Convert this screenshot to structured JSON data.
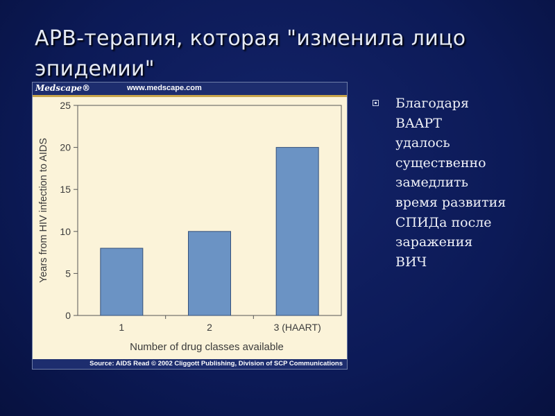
{
  "slide": {
    "title": "АРВ-терапия, которая \"изменила лицо эпидемии\"",
    "bullet": "Благодаря\nBAAPT\nудалось\nсущественно\nзамедлить\nвремя развития\nСПИДа после\nзаражения\nВИЧ"
  },
  "figure": {
    "logo": "Medscape®",
    "url": "www.medscape.com",
    "source": "Source: AIDS Read  © 2002 Cliggott Publishing, Division of SCP Communications"
  },
  "chart_data": {
    "type": "bar",
    "categories": [
      "1",
      "2",
      "3 (HAART)"
    ],
    "values": [
      8,
      10,
      20
    ],
    "xlabel": "Number of drug classes available",
    "ylabel": "Years from HIV infection to AIDS",
    "ylim": [
      0,
      25
    ],
    "yticks": [
      0,
      5,
      10,
      15,
      20,
      25
    ],
    "grid": false,
    "colors": {
      "bar": "#6b93c4",
      "bar_stroke": "#34507a",
      "plot_bg": "#fbf3d9",
      "axis": "#555555",
      "text": "#3a3a3a"
    }
  }
}
